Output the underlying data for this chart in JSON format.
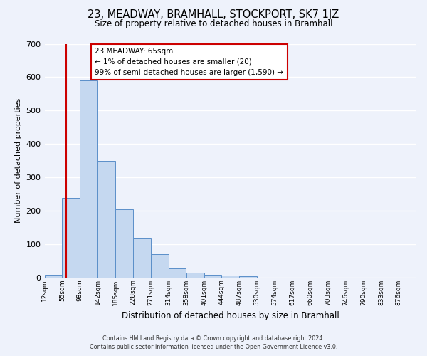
{
  "title": "23, MEADWAY, BRAMHALL, STOCKPORT, SK7 1JZ",
  "subtitle": "Size of property relative to detached houses in Bramhall",
  "xlabel": "Distribution of detached houses by size in Bramhall",
  "ylabel": "Number of detached properties",
  "bins": [
    12,
    55,
    98,
    142,
    185,
    228,
    271,
    314,
    358,
    401,
    444,
    487,
    530,
    574,
    617,
    660,
    703,
    746,
    790,
    833,
    876
  ],
  "bin_labels": [
    "12sqm",
    "55sqm",
    "98sqm",
    "142sqm",
    "185sqm",
    "228sqm",
    "271sqm",
    "314sqm",
    "358sqm",
    "401sqm",
    "444sqm",
    "487sqm",
    "530sqm",
    "574sqm",
    "617sqm",
    "660sqm",
    "703sqm",
    "746sqm",
    "790sqm",
    "833sqm",
    "876sqm"
  ],
  "bar_heights": [
    8,
    237,
    590,
    350,
    203,
    118,
    70,
    27,
    13,
    8,
    5,
    3,
    0,
    0,
    0,
    0,
    0,
    0,
    0,
    0
  ],
  "bar_color": "#c5d8f0",
  "bar_edge_color": "#5b8fc9",
  "ylim": [
    0,
    700
  ],
  "yticks": [
    0,
    100,
    200,
    300,
    400,
    500,
    600,
    700
  ],
  "property_line_x": 65,
  "property_line_color": "#cc0000",
  "annotation_title": "23 MEADWAY: 65sqm",
  "annotation_line1": "← 1% of detached houses are smaller (20)",
  "annotation_line2": "99% of semi-detached houses are larger (1,590) →",
  "annotation_box_color": "#ffffff",
  "annotation_box_edge": "#cc0000",
  "background_color": "#eef2fb",
  "grid_color": "#ffffff",
  "footer_line1": "Contains HM Land Registry data © Crown copyright and database right 2024.",
  "footer_line2": "Contains public sector information licensed under the Open Government Licence v3.0."
}
